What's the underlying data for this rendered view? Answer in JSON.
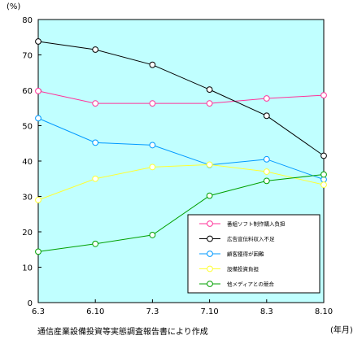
{
  "chart_data": {
    "type": "line",
    "title": "",
    "xlabel": "",
    "ylabel": "",
    "y_unit_label": "(%)",
    "x_unit_label": "(年月)",
    "source_note": "通信産業設備投資等実態調査報告書により作成",
    "categories": [
      "6.3",
      "6.10",
      "7.3",
      "7.10",
      "8.3",
      "8.10"
    ],
    "ylim": [
      0,
      80
    ],
    "yticks": [
      0,
      10,
      20,
      30,
      40,
      50,
      60,
      70,
      80
    ],
    "grid": false,
    "plot_background": "#c0ffff",
    "legend_position": "lower-right",
    "series": [
      {
        "name": "番組ソフト制作購入負担",
        "color": "#ff3399",
        "values": [
          59.8,
          56.3,
          56.3,
          56.3,
          57.7,
          58.6
        ]
      },
      {
        "name": "広告宣伝料収入不足",
        "color": "#000000",
        "values": [
          73.8,
          71.5,
          67.2,
          60.2,
          52.8,
          41.5
        ]
      },
      {
        "name": "顧客獲得が困難",
        "color": "#0099ff",
        "values": [
          52.1,
          45.2,
          44.5,
          38.9,
          40.5,
          34.8
        ]
      },
      {
        "name": "設備投資負担",
        "color": "#ffff33",
        "values": [
          29.0,
          35.0,
          38.3,
          39.0,
          37.0,
          33.3
        ]
      },
      {
        "name": "他メディアとの競合",
        "color": "#00a000",
        "values": [
          14.4,
          16.6,
          19.1,
          30.2,
          34.4,
          36.2
        ]
      }
    ]
  }
}
